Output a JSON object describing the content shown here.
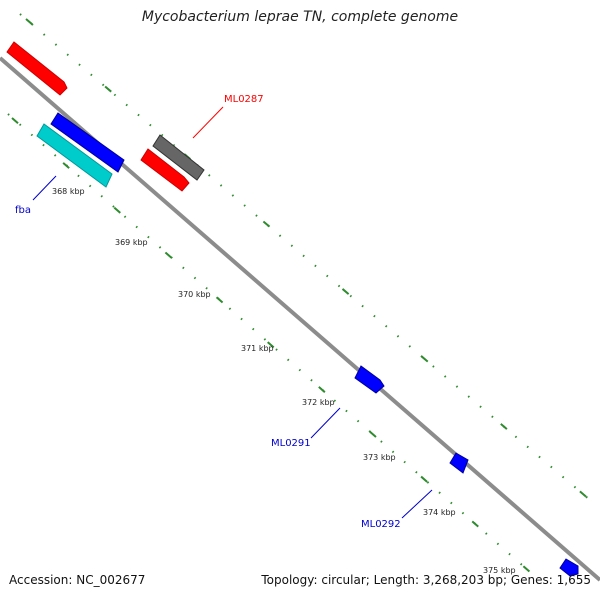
{
  "title": "Mycobacterium leprae TN, complete genome",
  "footer": {
    "accession": "Accession: NC_002677",
    "summary": "Topology: circular; Length: 3,268,203 bp; Genes: 1,655"
  },
  "colors": {
    "backbone": "#8c8c8c",
    "tick_dots": "#2e8b2e",
    "forward_gene": "#ff0000",
    "reverse_gene": "#0000ff",
    "rna_gene": "#00cccc",
    "other_gene": "#666666",
    "label_red": "#ff0000",
    "label_blue": "#0000cc"
  },
  "ticks": [
    {
      "label": "368 kbp"
    },
    {
      "label": "369 kbp"
    },
    {
      "label": "370 kbp"
    },
    {
      "label": "371 kbp"
    },
    {
      "label": "372 kbp"
    },
    {
      "label": "373 kbp"
    },
    {
      "label": "374 kbp"
    },
    {
      "label": "375 kbp"
    }
  ],
  "gene_labels": [
    {
      "id": "ml0287",
      "text": "ML0287",
      "color": "red"
    },
    {
      "id": "fba",
      "text": "fba",
      "color": "blue"
    },
    {
      "id": "ml0291",
      "text": "ML0291",
      "color": "blue"
    },
    {
      "id": "ml0292",
      "text": "ML0292",
      "color": "blue"
    }
  ]
}
